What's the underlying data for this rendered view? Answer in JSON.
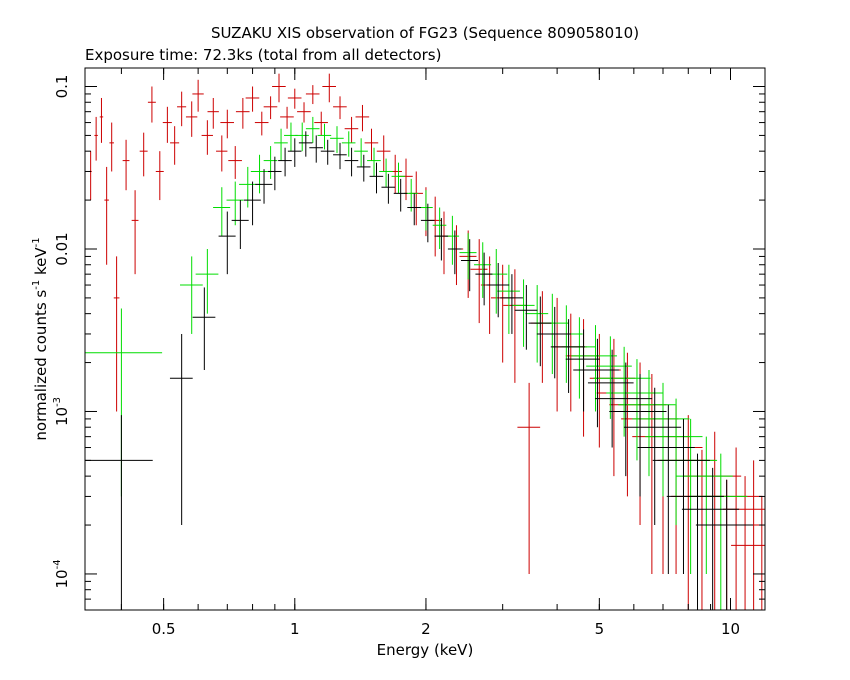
{
  "chart_data": {
    "type": "scatter",
    "title": "SUZAKU XIS observation of FG23 (Sequence 809058010)",
    "subtitle": "Exposure time: 72.3ks (total from all detectors)",
    "xlabel": "Energy (keV)",
    "ylabel": "normalized counts s",
    "ylabel_sup1": "-1",
    "ylabel_mid": " keV",
    "ylabel_sup2": "-1",
    "x_scale": "log",
    "y_scale": "log",
    "xlim": [
      0.33,
      12.0
    ],
    "ylim": [
      6e-05,
      0.13
    ],
    "x_ticks": [
      {
        "value": 0.5,
        "label": "0.5"
      },
      {
        "value": 1,
        "label": "1"
      },
      {
        "value": 2,
        "label": "2"
      },
      {
        "value": 5,
        "label": "5"
      },
      {
        "value": 10,
        "label": "10"
      }
    ],
    "y_ticks": [
      {
        "value": 0.1,
        "label": "0.1",
        "sup": ""
      },
      {
        "value": 0.01,
        "label": "0.01",
        "sup": ""
      },
      {
        "value": 0.001,
        "label": "10",
        "sup": "-3"
      },
      {
        "value": 0.0001,
        "label": "10",
        "sup": "-4"
      }
    ],
    "grid": false,
    "series": [
      {
        "color": "#cc0000",
        "points": [
          [
            0.34,
            0.03,
            0.002,
            0.01
          ],
          [
            0.35,
            0.05,
            0.003,
            0.015
          ],
          [
            0.36,
            0.065,
            0.003,
            0.02
          ],
          [
            0.37,
            0.02,
            0.004,
            0.012
          ],
          [
            0.38,
            0.045,
            0.004,
            0.015
          ],
          [
            0.39,
            0.005,
            0.005,
            0.004
          ],
          [
            0.41,
            0.035,
            0.006,
            0.012
          ],
          [
            0.43,
            0.015,
            0.006,
            0.008
          ],
          [
            0.45,
            0.04,
            0.007,
            0.012
          ],
          [
            0.47,
            0.08,
            0.007,
            0.02
          ],
          [
            0.49,
            0.03,
            0.007,
            0.01
          ],
          [
            0.51,
            0.06,
            0.008,
            0.015
          ],
          [
            0.53,
            0.045,
            0.008,
            0.012
          ],
          [
            0.55,
            0.075,
            0.008,
            0.018
          ],
          [
            0.58,
            0.065,
            0.01,
            0.016
          ],
          [
            0.6,
            0.09,
            0.01,
            0.02
          ],
          [
            0.63,
            0.05,
            0.01,
            0.012
          ],
          [
            0.65,
            0.07,
            0.01,
            0.015
          ],
          [
            0.68,
            0.04,
            0.01,
            0.01
          ],
          [
            0.7,
            0.06,
            0.012,
            0.012
          ],
          [
            0.73,
            0.035,
            0.012,
            0.008
          ],
          [
            0.76,
            0.07,
            0.012,
            0.015
          ],
          [
            0.8,
            0.085,
            0.012,
            0.015
          ],
          [
            0.84,
            0.06,
            0.012,
            0.01
          ],
          [
            0.88,
            0.075,
            0.012,
            0.012
          ],
          [
            0.92,
            0.1,
            0.012,
            0.02
          ],
          [
            0.96,
            0.065,
            0.012,
            0.01
          ],
          [
            1.0,
            0.085,
            0.012,
            0.012
          ],
          [
            1.05,
            0.07,
            0.012,
            0.01
          ],
          [
            1.1,
            0.09,
            0.012,
            0.012
          ],
          [
            1.15,
            0.06,
            0.012,
            0.01
          ],
          [
            1.2,
            0.1,
            0.012,
            0.02
          ],
          [
            1.27,
            0.075,
            0.012,
            0.012
          ],
          [
            1.35,
            0.055,
            0.012,
            0.01
          ],
          [
            1.43,
            0.065,
            0.012,
            0.012
          ],
          [
            1.5,
            0.045,
            0.012,
            0.01
          ],
          [
            1.6,
            0.04,
            0.012,
            0.01
          ],
          [
            1.7,
            0.03,
            0.012,
            0.008
          ],
          [
            1.8,
            0.028,
            0.012,
            0.008
          ],
          [
            1.9,
            0.022,
            0.012,
            0.008
          ],
          [
            2.0,
            0.018,
            0.012,
            0.006
          ],
          [
            2.1,
            0.015,
            0.012,
            0.006
          ],
          [
            2.2,
            0.012,
            0.012,
            0.005
          ],
          [
            2.35,
            0.01,
            0.012,
            0.004
          ],
          [
            2.5,
            0.009,
            0.015,
            0.004
          ],
          [
            2.65,
            0.0075,
            0.015,
            0.004
          ],
          [
            2.8,
            0.006,
            0.015,
            0.003
          ],
          [
            3.0,
            0.005,
            0.02,
            0.003
          ],
          [
            3.2,
            0.0045,
            0.02,
            0.003
          ],
          [
            3.45,
            0.0008,
            0.02,
            0.0007
          ],
          [
            3.7,
            0.0035,
            0.02,
            0.002
          ],
          [
            4.0,
            0.003,
            0.03,
            0.002
          ],
          [
            4.3,
            0.0025,
            0.03,
            0.0015
          ],
          [
            4.6,
            0.0022,
            0.03,
            0.0015
          ],
          [
            5.0,
            0.0018,
            0.04,
            0.0012
          ],
          [
            5.4,
            0.0016,
            0.04,
            0.0012
          ],
          [
            5.8,
            0.0013,
            0.05,
            0.001
          ],
          [
            6.2,
            0.0011,
            0.05,
            0.0009
          ],
          [
            6.6,
            0.0009,
            0.05,
            0.0008
          ],
          [
            7.0,
            0.0007,
            0.05,
            0.0006
          ],
          [
            7.5,
            0.0006,
            0.05,
            0.0005
          ],
          [
            8.0,
            0.0005,
            0.05,
            0.00045
          ],
          [
            8.6,
            0.0003,
            0.05,
            0.00028
          ],
          [
            9.2,
            0.0004,
            0.05,
            0.00035
          ],
          [
            9.8,
            0.0002,
            0.05,
            0.00018
          ],
          [
            10.3,
            0.0003,
            0.05,
            0.0003
          ],
          [
            10.8,
            0.0002,
            0.05,
            0.0002
          ],
          [
            11.3,
            0.00025,
            0.05,
            0.00025
          ],
          [
            11.8,
            0.00015,
            0.05,
            0.00015
          ]
        ]
      },
      {
        "color": "#00dd00",
        "points": [
          [
            0.4,
            0.0023,
            0.08,
            0.002
          ],
          [
            0.58,
            0.006,
            0.02,
            0.003
          ],
          [
            0.63,
            0.007,
            0.02,
            0.003
          ],
          [
            0.68,
            0.018,
            0.015,
            0.006
          ],
          [
            0.73,
            0.02,
            0.015,
            0.006
          ],
          [
            0.78,
            0.025,
            0.015,
            0.007
          ],
          [
            0.83,
            0.03,
            0.015,
            0.008
          ],
          [
            0.88,
            0.035,
            0.012,
            0.008
          ],
          [
            0.93,
            0.045,
            0.012,
            0.01
          ],
          [
            0.98,
            0.05,
            0.012,
            0.01
          ],
          [
            1.04,
            0.05,
            0.012,
            0.01
          ],
          [
            1.1,
            0.055,
            0.012,
            0.01
          ],
          [
            1.17,
            0.05,
            0.012,
            0.009
          ],
          [
            1.25,
            0.048,
            0.012,
            0.009
          ],
          [
            1.33,
            0.045,
            0.012,
            0.008
          ],
          [
            1.42,
            0.04,
            0.012,
            0.008
          ],
          [
            1.52,
            0.035,
            0.012,
            0.007
          ],
          [
            1.62,
            0.03,
            0.012,
            0.006
          ],
          [
            1.73,
            0.028,
            0.012,
            0.006
          ],
          [
            1.85,
            0.022,
            0.012,
            0.005
          ],
          [
            2.0,
            0.018,
            0.012,
            0.005
          ],
          [
            2.15,
            0.014,
            0.012,
            0.004
          ],
          [
            2.3,
            0.012,
            0.012,
            0.004
          ],
          [
            2.5,
            0.0095,
            0.015,
            0.003
          ],
          [
            2.7,
            0.008,
            0.015,
            0.003
          ],
          [
            2.9,
            0.007,
            0.02,
            0.003
          ],
          [
            3.1,
            0.0055,
            0.02,
            0.0025
          ],
          [
            3.35,
            0.0045,
            0.02,
            0.002
          ],
          [
            3.6,
            0.004,
            0.02,
            0.002
          ],
          [
            3.9,
            0.0035,
            0.03,
            0.0018
          ],
          [
            4.2,
            0.003,
            0.03,
            0.0015
          ],
          [
            4.5,
            0.0025,
            0.03,
            0.0013
          ],
          [
            4.9,
            0.0022,
            0.04,
            0.0012
          ],
          [
            5.3,
            0.0019,
            0.04,
            0.001
          ],
          [
            5.7,
            0.0016,
            0.05,
            0.0009
          ],
          [
            6.1,
            0.0013,
            0.05,
            0.0008
          ],
          [
            6.5,
            0.0011,
            0.05,
            0.0007
          ],
          [
            7.0,
            0.0009,
            0.05,
            0.0006
          ],
          [
            7.5,
            0.0007,
            0.05,
            0.0005
          ],
          [
            8.1,
            0.0005,
            0.05,
            0.0004
          ],
          [
            8.8,
            0.0004,
            0.05,
            0.0003
          ],
          [
            9.5,
            0.0003,
            0.05,
            0.00025
          ]
        ]
      },
      {
        "color": "#000000",
        "points": [
          [
            0.4,
            0.0005,
            0.06,
            0.00045
          ],
          [
            0.55,
            0.0016,
            0.02,
            0.0014
          ],
          [
            0.62,
            0.0038,
            0.02,
            0.002
          ],
          [
            0.7,
            0.012,
            0.015,
            0.005
          ],
          [
            0.75,
            0.015,
            0.015,
            0.005
          ],
          [
            0.8,
            0.02,
            0.015,
            0.006
          ],
          [
            0.85,
            0.025,
            0.015,
            0.006
          ],
          [
            0.9,
            0.03,
            0.012,
            0.007
          ],
          [
            0.95,
            0.035,
            0.012,
            0.007
          ],
          [
            1.0,
            0.04,
            0.012,
            0.008
          ],
          [
            1.06,
            0.045,
            0.012,
            0.008
          ],
          [
            1.12,
            0.042,
            0.012,
            0.008
          ],
          [
            1.19,
            0.04,
            0.012,
            0.007
          ],
          [
            1.27,
            0.038,
            0.012,
            0.007
          ],
          [
            1.35,
            0.035,
            0.012,
            0.007
          ],
          [
            1.44,
            0.032,
            0.012,
            0.006
          ],
          [
            1.54,
            0.028,
            0.012,
            0.006
          ],
          [
            1.64,
            0.024,
            0.012,
            0.005
          ],
          [
            1.75,
            0.022,
            0.012,
            0.005
          ],
          [
            1.88,
            0.018,
            0.012,
            0.004
          ],
          [
            2.02,
            0.015,
            0.012,
            0.004
          ],
          [
            2.17,
            0.012,
            0.012,
            0.0035
          ],
          [
            2.33,
            0.01,
            0.012,
            0.003
          ],
          [
            2.52,
            0.0085,
            0.015,
            0.003
          ],
          [
            2.72,
            0.007,
            0.015,
            0.0025
          ],
          [
            2.93,
            0.006,
            0.02,
            0.0022
          ],
          [
            3.15,
            0.005,
            0.02,
            0.002
          ],
          [
            3.4,
            0.0042,
            0.02,
            0.0018
          ],
          [
            3.66,
            0.0035,
            0.02,
            0.0016
          ],
          [
            3.95,
            0.003,
            0.03,
            0.0014
          ],
          [
            4.25,
            0.0025,
            0.03,
            0.0012
          ],
          [
            4.6,
            0.0021,
            0.03,
            0.0011
          ],
          [
            4.95,
            0.0018,
            0.04,
            0.001
          ],
          [
            5.35,
            0.0015,
            0.04,
            0.0009
          ],
          [
            5.75,
            0.0012,
            0.05,
            0.0008
          ],
          [
            6.2,
            0.001,
            0.05,
            0.0007
          ],
          [
            6.7,
            0.0008,
            0.05,
            0.0006
          ],
          [
            7.2,
            0.0006,
            0.05,
            0.0005
          ],
          [
            7.8,
            0.0005,
            0.05,
            0.0004
          ],
          [
            8.4,
            0.0003,
            0.05,
            0.00025
          ],
          [
            9.1,
            0.00025,
            0.05,
            0.0002
          ],
          [
            9.8,
            0.0002,
            0.05,
            0.00018
          ]
        ]
      }
    ]
  }
}
